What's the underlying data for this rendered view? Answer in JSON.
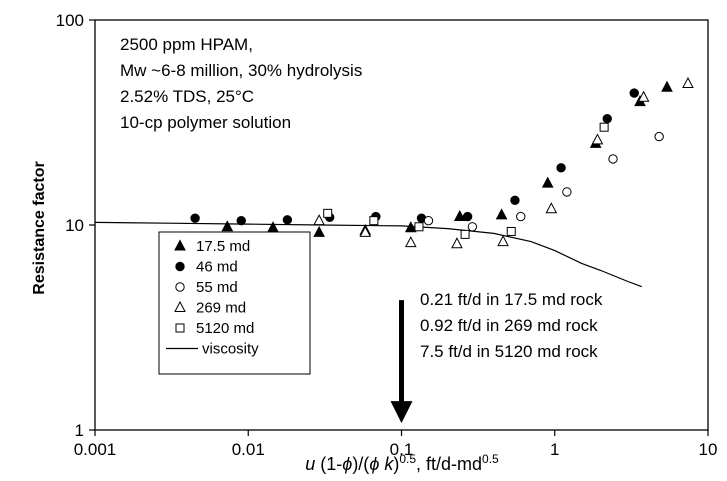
{
  "chart_data": {
    "type": "scatter",
    "xscale": "log",
    "yscale": "log",
    "xlim": [
      0.001,
      10
    ],
    "ylim": [
      1,
      100
    ],
    "grid": false,
    "legend_position": "lower-left",
    "xlabel": {
      "parts": [
        {
          "text": "u",
          "style": "italic"
        },
        {
          "text": " (1-",
          "style": "normal"
        },
        {
          "text": "ϕ",
          "style": "italic"
        },
        {
          "text": ")/(",
          "style": "normal"
        },
        {
          "text": "ϕ k",
          "style": "italic"
        },
        {
          "text": ")",
          "style": "normal"
        },
        {
          "text": "0.5",
          "style": "super"
        },
        {
          "text": ", ft/d-md",
          "style": "normal"
        },
        {
          "text": "0.5",
          "style": "super"
        }
      ]
    },
    "ylabel": "Resistance factor",
    "x_ticks": [
      {
        "value": 0.001,
        "label": "0.001"
      },
      {
        "value": 0.01,
        "label": "0.01"
      },
      {
        "value": 0.1,
        "label": "0.1"
      },
      {
        "value": 1,
        "label": "1"
      },
      {
        "value": 10,
        "label": "10"
      }
    ],
    "y_ticks": [
      {
        "value": 1,
        "label": "1"
      },
      {
        "value": 10,
        "label": "10"
      },
      {
        "value": 100,
        "label": "100"
      }
    ],
    "annotation_top": [
      "2500 ppm HPAM,",
      "Mw ~6-8 million, 30% hydrolysis",
      "2.52% TDS, 25°C",
      "10-cp polymer solution"
    ],
    "arrow": {
      "x": 0.1,
      "y_from": 4.3,
      "y_to": 1.08
    },
    "annotation_arrow": [
      "0.21 ft/d in 17.5 md rock",
      "0.92 ft/d in 269 md rock",
      "7.5 ft/d in 5120 md rock"
    ],
    "series": [
      {
        "name": "17.5 md",
        "marker": "triangle",
        "fill": "#000000",
        "points": [
          [
            0.0073,
            9.8
          ],
          [
            0.0145,
            9.7
          ],
          [
            0.029,
            9.2
          ],
          [
            0.058,
            9.4
          ],
          [
            0.115,
            9.7
          ],
          [
            0.24,
            11.0
          ],
          [
            0.45,
            11.2
          ],
          [
            0.9,
            16.0
          ],
          [
            1.85,
            25.0
          ],
          [
            3.6,
            40.0
          ],
          [
            5.4,
            47.0
          ]
        ]
      },
      {
        "name": "46 md",
        "marker": "circle",
        "fill": "#000000",
        "points": [
          [
            0.0045,
            10.8
          ],
          [
            0.009,
            10.5
          ],
          [
            0.018,
            10.6
          ],
          [
            0.034,
            10.9
          ],
          [
            0.068,
            11.0
          ],
          [
            0.135,
            10.8
          ],
          [
            0.27,
            11.0
          ],
          [
            0.55,
            13.2
          ],
          [
            1.1,
            19.0
          ],
          [
            2.2,
            33.0
          ],
          [
            3.3,
            44.0
          ]
        ]
      },
      {
        "name": "55 md",
        "marker": "circle",
        "fill": "#ffffff",
        "points": [
          [
            0.15,
            10.5
          ],
          [
            0.29,
            9.8
          ],
          [
            0.6,
            11.0
          ],
          [
            1.2,
            14.5
          ],
          [
            2.4,
            21.0
          ],
          [
            4.8,
            27.0
          ]
        ]
      },
      {
        "name": "269 md",
        "marker": "triangle",
        "fill": "#ffffff",
        "points": [
          [
            0.029,
            10.5
          ],
          [
            0.058,
            9.2
          ],
          [
            0.115,
            8.2
          ],
          [
            0.23,
            8.1
          ],
          [
            0.46,
            8.3
          ],
          [
            0.95,
            12.0
          ],
          [
            1.9,
            26.0
          ],
          [
            3.8,
            42.0
          ],
          [
            7.4,
            49.0
          ]
        ]
      },
      {
        "name": "5120 md",
        "marker": "square",
        "fill": "#ffffff",
        "points": [
          [
            0.033,
            11.4
          ],
          [
            0.066,
            10.5
          ],
          [
            0.13,
            9.8
          ],
          [
            0.26,
            9.0
          ],
          [
            0.52,
            9.3
          ],
          [
            2.1,
            30.0
          ]
        ]
      },
      {
        "name": "viscosity",
        "marker": "line",
        "points": [
          [
            0.001,
            10.3
          ],
          [
            0.003,
            10.2
          ],
          [
            0.01,
            10.1
          ],
          [
            0.03,
            10.0
          ],
          [
            0.1,
            9.9
          ],
          [
            0.2,
            9.6
          ],
          [
            0.4,
            9.1
          ],
          [
            0.7,
            8.3
          ],
          [
            1.0,
            7.5
          ],
          [
            1.5,
            6.5
          ],
          [
            2.0,
            6.0
          ],
          [
            3.0,
            5.3
          ],
          [
            3.7,
            5.0
          ]
        ]
      }
    ]
  }
}
